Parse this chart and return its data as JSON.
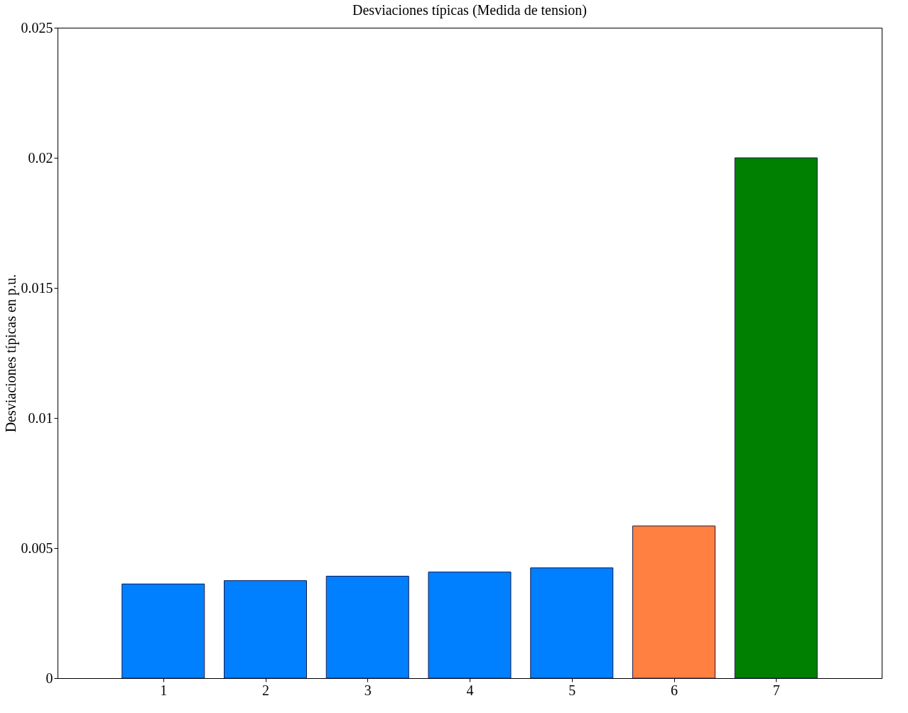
{
  "chart_data": {
    "type": "bar",
    "title": "Desviaciones típicas (Medida de tension)",
    "ylabel": "Desviaciones típicas en p.u.",
    "x": [
      1,
      2,
      3,
      4,
      5,
      6,
      7
    ],
    "values": [
      0.00362,
      0.00375,
      0.00392,
      0.00408,
      0.00424,
      0.00585,
      0.02
    ],
    "colors": [
      "#0080ff",
      "#0080ff",
      "#0080ff",
      "#0080ff",
      "#0080ff",
      "#ff8040",
      "#008000"
    ],
    "xlim": [
      0,
      8
    ],
    "xticks": [
      1,
      2,
      3,
      4,
      5,
      6,
      7
    ],
    "ylim": [
      0,
      0.025
    ],
    "yticks": [
      0,
      0.005,
      0.01,
      0.015,
      0.02,
      0.025
    ],
    "grid": false
  }
}
